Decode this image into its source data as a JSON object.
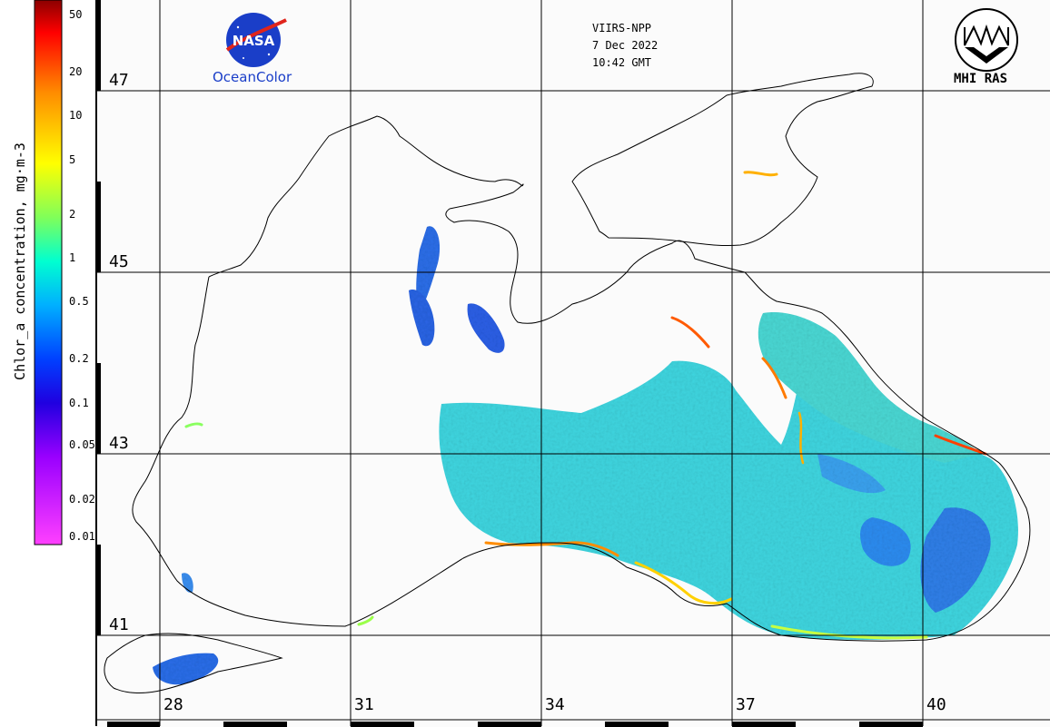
{
  "header": {
    "sensor": "VIIRS-NPP",
    "date": "7 Dec 2022",
    "time": "10:42 GMT"
  },
  "logos": {
    "nasa_caption": "OceanColor",
    "nasa_wordmark": "NASA",
    "mhi_caption": "MHI RAS"
  },
  "colorbar": {
    "title": "Chlor_a concentration, mg·m-3",
    "ticks": [
      "50",
      "20",
      "10",
      "5",
      "2",
      "1",
      "0.5",
      "0.2",
      "0.1",
      "0.05",
      "0.02",
      "0.01"
    ]
  },
  "grid": {
    "latitudes": [
      "47",
      "45",
      "43",
      "41"
    ],
    "longitudes": [
      "28",
      "31",
      "34",
      "37",
      "40"
    ]
  },
  "colors": {
    "gridline": "#000000",
    "coast": "#000000",
    "background": "#fbfbfb",
    "nasa_blue": "#1a3ec8",
    "nasa_red": "#e0241b"
  }
}
